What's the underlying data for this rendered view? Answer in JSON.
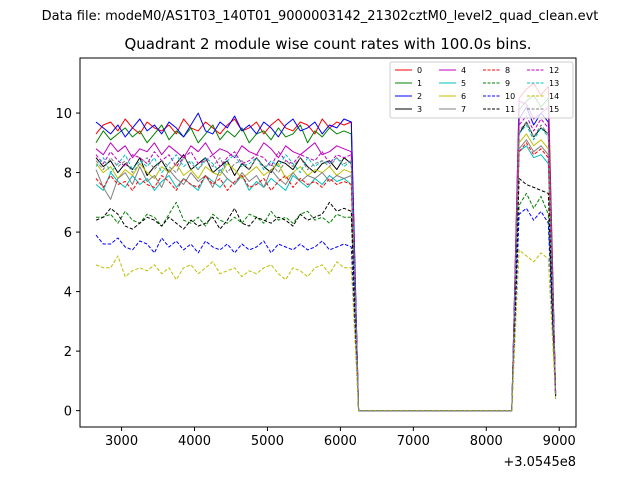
{
  "chart_data": {
    "type": "line",
    "suptitle": "Data file: modeM0/AS1T03_140T01_9000003142_21302cztM0_level2_quad_clean.evt",
    "title": "Quadrant 2 module wise count rates with 100.0s bins.",
    "xlabel": "",
    "ylabel": "",
    "x_offset_label": "+3.0545e8",
    "xlim": [
      2430,
      9230
    ],
    "ylim": [
      -0.55,
      11.85
    ],
    "xticks": [
      3000,
      4000,
      5000,
      6000,
      7000,
      8000,
      9000
    ],
    "yticks": [
      0,
      2,
      4,
      6,
      8,
      10
    ],
    "legend_location": "upper right",
    "x": [
      2650,
      2750,
      2850,
      2950,
      3050,
      3150,
      3250,
      3350,
      3450,
      3550,
      3650,
      3750,
      3850,
      3950,
      4050,
      4150,
      4250,
      4350,
      4450,
      4550,
      4650,
      4750,
      4850,
      4950,
      5050,
      5150,
      5250,
      5350,
      5450,
      5550,
      5650,
      5750,
      5850,
      5950,
      6050,
      6150,
      6250,
      6350,
      6450,
      6550,
      6650,
      6750,
      6850,
      6950,
      7050,
      7150,
      7250,
      7350,
      7450,
      7550,
      7650,
      7750,
      7850,
      7950,
      8050,
      8150,
      8250,
      8350,
      8450,
      8550,
      8650,
      8750,
      8850,
      8950
    ],
    "series": [
      {
        "name": "0",
        "color": "#ff0000",
        "dash": "solid",
        "values": [
          9.3,
          9.6,
          9.7,
          9.4,
          9.8,
          9.5,
          9.3,
          9.7,
          9.5,
          9.4,
          9.6,
          9.3,
          9.8,
          9.5,
          9.4,
          9.7,
          9.5,
          9.3,
          9.6,
          9.8,
          9.4,
          9.5,
          9.7,
          9.3,
          9.6,
          9.8,
          9.5,
          9.4,
          9.7,
          9.6,
          9.3,
          9.8,
          9.5,
          9.7,
          9.6,
          9.7,
          0,
          0,
          0,
          0,
          0,
          0,
          0,
          0,
          0,
          0,
          0,
          0,
          0,
          0,
          0,
          0,
          0,
          0,
          0,
          0,
          0,
          0,
          10.5,
          10.8,
          11.0,
          10.6,
          10.9,
          0.6
        ]
      },
      {
        "name": "1",
        "color": "#008000",
        "dash": "solid",
        "values": [
          9.0,
          9.4,
          9.1,
          9.3,
          9.5,
          9.2,
          9.4,
          9.0,
          9.3,
          9.6,
          9.1,
          9.4,
          9.2,
          9.5,
          9.0,
          9.3,
          9.6,
          9.1,
          9.4,
          9.2,
          9.5,
          9.0,
          9.3,
          9.4,
          9.1,
          9.5,
          9.2,
          9.3,
          9.6,
          9.0,
          9.4,
          9.2,
          9.5,
          9.3,
          9.4,
          9.3,
          0,
          0,
          0,
          0,
          0,
          0,
          0,
          0,
          0,
          0,
          0,
          0,
          0,
          0,
          0,
          0,
          0,
          0,
          0,
          0,
          0,
          0,
          10.1,
          10.4,
          10.6,
          10.2,
          10.5,
          0.6
        ]
      },
      {
        "name": "2",
        "color": "#0000ff",
        "dash": "solid",
        "values": [
          9.7,
          9.5,
          9.3,
          9.6,
          9.2,
          9.5,
          9.8,
          9.4,
          9.6,
          9.3,
          9.7,
          9.5,
          9.2,
          9.6,
          10.0,
          9.4,
          9.3,
          9.7,
          9.5,
          9.9,
          9.4,
          9.6,
          9.3,
          9.7,
          9.5,
          9.2,
          9.6,
          9.8,
          9.4,
          9.5,
          9.7,
          9.3,
          9.6,
          9.5,
          9.8,
          9.7,
          0,
          0,
          0,
          0,
          0,
          0,
          0,
          0,
          0,
          0,
          0,
          0,
          0,
          0,
          0,
          0,
          0,
          0,
          0,
          0,
          0,
          0,
          9.8,
          10.2,
          9.6,
          10.0,
          9.7,
          0.6
        ]
      },
      {
        "name": "3",
        "color": "#000000",
        "dash": "solid",
        "values": [
          8.5,
          8.2,
          8.4,
          8.0,
          8.3,
          8.1,
          8.5,
          7.9,
          8.2,
          8.4,
          8.0,
          8.3,
          8.6,
          8.1,
          8.3,
          8.5,
          8.0,
          8.2,
          8.4,
          7.9,
          8.3,
          8.1,
          8.5,
          8.2,
          8.0,
          8.4,
          8.3,
          8.1,
          8.5,
          8.2,
          8.0,
          8.3,
          8.4,
          8.1,
          8.5,
          8.3,
          0,
          0,
          0,
          0,
          0,
          0,
          0,
          0,
          0,
          0,
          0,
          0,
          0,
          0,
          0,
          0,
          0,
          0,
          0,
          0,
          0,
          0,
          9.3,
          9.7,
          9.2,
          9.5,
          9.3,
          0.5
        ]
      },
      {
        "name": "4",
        "color": "#bf00bf",
        "dash": "solid",
        "values": [
          8.8,
          8.6,
          9.0,
          8.7,
          8.9,
          8.5,
          8.8,
          8.7,
          9.0,
          8.6,
          8.9,
          8.7,
          8.5,
          8.9,
          8.7,
          9.0,
          8.6,
          8.8,
          8.7,
          8.5,
          8.9,
          8.7,
          8.6,
          9.0,
          8.8,
          8.5,
          8.9,
          8.7,
          8.6,
          8.8,
          9.0,
          8.6,
          8.7,
          8.9,
          8.8,
          8.7,
          0,
          0,
          0,
          0,
          0,
          0,
          0,
          0,
          0,
          0,
          0,
          0,
          0,
          0,
          0,
          0,
          0,
          0,
          0,
          0,
          0,
          0,
          10.4,
          10.3,
          9.8,
          10.0,
          10.2,
          0.6
        ]
      },
      {
        "name": "5",
        "color": "#00bfbf",
        "dash": "solid",
        "values": [
          7.6,
          7.4,
          8.0,
          7.7,
          7.5,
          7.9,
          7.6,
          7.8,
          7.4,
          7.7,
          7.9,
          7.5,
          7.8,
          7.6,
          7.4,
          7.9,
          7.7,
          7.5,
          7.8,
          7.6,
          7.9,
          7.4,
          7.7,
          7.5,
          7.8,
          7.6,
          7.4,
          7.9,
          7.7,
          7.5,
          7.8,
          7.6,
          7.9,
          7.7,
          7.8,
          7.6,
          0,
          0,
          0,
          0,
          0,
          0,
          0,
          0,
          0,
          0,
          0,
          0,
          0,
          0,
          0,
          0,
          0,
          0,
          0,
          0,
          0,
          0,
          8.7,
          8.9,
          8.5,
          8.6,
          8.3,
          0.5
        ]
      },
      {
        "name": "6",
        "color": "#bfbf00",
        "dash": "solid",
        "values": [
          8.3,
          8.0,
          8.2,
          7.8,
          8.1,
          7.9,
          8.3,
          8.0,
          7.8,
          8.2,
          8.0,
          8.3,
          7.9,
          8.1,
          7.8,
          8.2,
          8.0,
          7.9,
          8.3,
          8.1,
          7.8,
          8.0,
          8.2,
          7.9,
          8.1,
          8.3,
          7.8,
          8.0,
          8.2,
          7.9,
          8.1,
          8.0,
          8.2,
          7.9,
          8.1,
          8.0,
          0,
          0,
          0,
          0,
          0,
          0,
          0,
          0,
          0,
          0,
          0,
          0,
          0,
          0,
          0,
          0,
          0,
          0,
          0,
          0,
          0,
          0,
          9.0,
          9.3,
          8.9,
          9.1,
          8.8,
          0.5
        ]
      },
      {
        "name": "7",
        "color": "#808080",
        "dash": "solid",
        "values": [
          8.1,
          7.5,
          7.1,
          7.8,
          8.0,
          7.6,
          8.2,
          7.7,
          7.9,
          7.5,
          8.1,
          7.8,
          7.6,
          8.0,
          7.7,
          7.9,
          7.5,
          8.1,
          7.8,
          7.6,
          8.0,
          7.7,
          7.9,
          7.5,
          8.1,
          7.8,
          7.6,
          8.0,
          7.7,
          7.9,
          7.8,
          8.0,
          7.7,
          7.9,
          7.8,
          7.9,
          0,
          0,
          0,
          0,
          0,
          0,
          0,
          0,
          0,
          0,
          0,
          0,
          0,
          0,
          0,
          0,
          0,
          0,
          0,
          0,
          0,
          0,
          8.8,
          9.1,
          8.7,
          8.9,
          8.6,
          0.5
        ]
      },
      {
        "name": "8",
        "color": "#ff0000",
        "dash": "dashed",
        "values": [
          7.8,
          7.5,
          7.9,
          7.6,
          7.7,
          7.4,
          7.8,
          7.6,
          7.5,
          7.9,
          7.7,
          7.4,
          7.8,
          7.6,
          7.5,
          7.9,
          7.6,
          7.8,
          7.4,
          7.7,
          7.9,
          7.5,
          7.6,
          7.8,
          7.4,
          7.7,
          7.9,
          7.5,
          7.8,
          7.6,
          7.7,
          7.5,
          7.8,
          7.6,
          7.7,
          7.6,
          0,
          0,
          0,
          0,
          0,
          0,
          0,
          0,
          0,
          0,
          0,
          0,
          0,
          0,
          0,
          0,
          0,
          0,
          0,
          0,
          0,
          0,
          8.7,
          9.0,
          8.6,
          8.8,
          8.5,
          0.5
        ]
      },
      {
        "name": "9",
        "color": "#008000",
        "dash": "dashed",
        "values": [
          6.5,
          6.5,
          6.6,
          6.3,
          6.7,
          6.4,
          6.3,
          6.6,
          6.5,
          6.2,
          6.6,
          7.0,
          6.4,
          6.3,
          6.5,
          6.2,
          6.6,
          6.4,
          6.3,
          6.5,
          6.3,
          6.6,
          6.5,
          6.3,
          6.7,
          6.4,
          6.5,
          6.3,
          6.6,
          6.7,
          6.4,
          6.5,
          6.3,
          6.6,
          6.5,
          6.5,
          0,
          0,
          0,
          0,
          0,
          0,
          0,
          0,
          0,
          0,
          0,
          0,
          0,
          0,
          0,
          0,
          0,
          0,
          0,
          0,
          0,
          0,
          6.9,
          7.3,
          6.8,
          7.2,
          6.6,
          0.5
        ]
      },
      {
        "name": "10",
        "color": "#0000ff",
        "dash": "dashed",
        "values": [
          5.9,
          5.6,
          5.6,
          5.8,
          5.5,
          5.4,
          5.7,
          5.6,
          5.3,
          5.8,
          5.5,
          5.7,
          5.4,
          5.6,
          5.3,
          5.7,
          5.5,
          5.4,
          5.6,
          5.3,
          5.6,
          5.4,
          5.5,
          5.7,
          5.3,
          5.6,
          5.5,
          5.4,
          5.6,
          5.4,
          5.5,
          5.7,
          5.4,
          5.5,
          5.6,
          5.5,
          0,
          0,
          0,
          0,
          0,
          0,
          0,
          0,
          0,
          0,
          0,
          0,
          0,
          0,
          0,
          0,
          0,
          0,
          0,
          0,
          0,
          0,
          6.6,
          6.8,
          6.4,
          6.7,
          6.3,
          0.4
        ]
      },
      {
        "name": "11",
        "color": "#000000",
        "dash": "dashed",
        "values": [
          6.4,
          6.5,
          6.8,
          6.6,
          6.2,
          6.1,
          6.3,
          6.5,
          6.4,
          6.2,
          6.5,
          6.3,
          6.1,
          6.4,
          6.2,
          6.3,
          6.5,
          6.1,
          6.4,
          6.8,
          6.3,
          6.2,
          6.5,
          6.4,
          6.3,
          6.5,
          6.4,
          6.2,
          6.6,
          6.4,
          6.5,
          6.6,
          7.0,
          6.7,
          6.8,
          6.7,
          0,
          0,
          0,
          0,
          0,
          0,
          0,
          0,
          0,
          0,
          0,
          0,
          0,
          0,
          0,
          0,
          0,
          0,
          0,
          0,
          0,
          0,
          7.8,
          7.6,
          7.5,
          7.4,
          7.3,
          0.5
        ]
      },
      {
        "name": "12",
        "color": "#bf00bf",
        "dash": "dashed",
        "values": [
          8.6,
          8.3,
          8.7,
          8.4,
          8.2,
          8.6,
          8.5,
          8.3,
          8.7,
          8.4,
          8.6,
          8.2,
          8.5,
          8.7,
          8.3,
          8.4,
          8.6,
          8.2,
          8.5,
          8.7,
          8.3,
          8.4,
          8.6,
          8.5,
          8.2,
          8.7,
          8.4,
          8.3,
          8.6,
          8.5,
          8.4,
          8.7,
          8.3,
          8.6,
          8.5,
          8.6,
          0,
          0,
          0,
          0,
          0,
          0,
          0,
          0,
          0,
          0,
          0,
          0,
          0,
          0,
          0,
          0,
          0,
          0,
          0,
          0,
          0,
          0,
          9.6,
          9.9,
          9.4,
          9.8,
          9.5,
          0.6
        ]
      },
      {
        "name": "13",
        "color": "#00bfbf",
        "dash": "dashed",
        "values": [
          8.2,
          8.5,
          8.0,
          8.3,
          8.6,
          8.1,
          8.4,
          8.2,
          8.5,
          8.0,
          8.3,
          8.6,
          8.2,
          8.4,
          8.1,
          8.5,
          8.3,
          8.0,
          8.4,
          8.6,
          8.2,
          8.3,
          8.5,
          8.1,
          8.4,
          8.2,
          8.6,
          8.3,
          8.0,
          8.5,
          8.2,
          8.4,
          8.3,
          8.5,
          8.2,
          8.4,
          0,
          0,
          0,
          0,
          0,
          0,
          0,
          0,
          0,
          0,
          0,
          0,
          0,
          0,
          0,
          0,
          0,
          0,
          0,
          0,
          0,
          0,
          9.3,
          9.6,
          9.1,
          9.5,
          9.2,
          0.5
        ]
      },
      {
        "name": "14",
        "color": "#bfbf00",
        "dash": "dashed",
        "values": [
          4.9,
          4.8,
          4.8,
          5.2,
          4.5,
          4.7,
          4.8,
          4.7,
          4.9,
          4.6,
          4.8,
          4.4,
          4.8,
          4.9,
          4.6,
          4.8,
          5.0,
          4.6,
          4.7,
          4.8,
          4.5,
          4.7,
          4.6,
          4.8,
          4.9,
          4.6,
          4.4,
          4.8,
          4.7,
          4.5,
          4.8,
          4.9,
          4.6,
          5.0,
          4.8,
          4.8,
          0,
          0,
          0,
          0,
          0,
          0,
          0,
          0,
          0,
          0,
          0,
          0,
          0,
          0,
          0,
          0,
          0,
          0,
          0,
          0,
          0,
          0,
          5.4,
          5.2,
          5.0,
          5.3,
          5.1,
          0.4
        ]
      },
      {
        "name": "15",
        "color": "#808080",
        "dash": "dashed",
        "values": [
          8.4,
          8.1,
          8.5,
          8.2,
          8.4,
          8.0,
          8.3,
          8.5,
          8.1,
          8.4,
          8.2,
          8.0,
          8.5,
          8.3,
          8.1,
          8.4,
          8.2,
          8.5,
          8.0,
          8.3,
          8.4,
          8.1,
          8.5,
          8.2,
          8.3,
          8.0,
          8.4,
          8.2,
          8.5,
          8.1,
          8.3,
          8.4,
          8.2,
          8.5,
          8.3,
          8.4,
          0,
          0,
          0,
          0,
          0,
          0,
          0,
          0,
          0,
          0,
          0,
          0,
          0,
          0,
          0,
          0,
          0,
          0,
          0,
          0,
          0,
          0,
          9.4,
          9.7,
          9.2,
          9.6,
          9.3,
          0.5
        ]
      }
    ]
  }
}
